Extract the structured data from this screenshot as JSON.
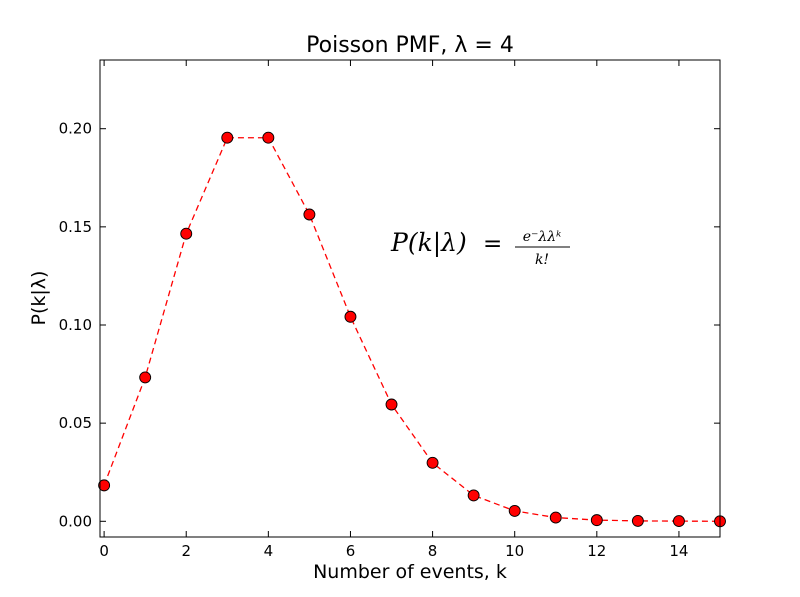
{
  "chart_data": {
    "type": "line",
    "title": "Poisson PMF, λ = 4",
    "xlabel": "Number of events, k",
    "ylabel": "P(k|λ)",
    "xlim": [
      -0.1,
      15.0
    ],
    "ylim": [
      -0.008,
      0.235
    ],
    "xticks": [
      0,
      2,
      4,
      6,
      8,
      10,
      12,
      14
    ],
    "xtick_labels": [
      "0",
      "2",
      "4",
      "6",
      "8",
      "10",
      "12",
      "14"
    ],
    "yticks": [
      0.0,
      0.05,
      0.1,
      0.15,
      0.2
    ],
    "ytick_labels": [
      "0.00",
      "0.05",
      "0.10",
      "0.15",
      "0.20"
    ],
    "grid": false,
    "series": [
      {
        "x": [
          0,
          1,
          2,
          3,
          4,
          5,
          6,
          7,
          8,
          9,
          10,
          11,
          12,
          13,
          14,
          15
        ],
        "y": [
          0.0183,
          0.0733,
          0.1465,
          0.1954,
          0.1954,
          0.1563,
          0.1042,
          0.0595,
          0.0298,
          0.0132,
          0.0053,
          0.0019,
          0.0006,
          0.0002,
          0.0001,
          0.0
        ],
        "line_style": "dashed",
        "line_color": "#ff0000",
        "marker": "circle",
        "marker_color": "#ff0000"
      }
    ],
    "annotation": {
      "lhs": "P(k|λ)",
      "equals": "=",
      "numerator": "e⁻λλᵏ",
      "denominator": "k!"
    }
  }
}
